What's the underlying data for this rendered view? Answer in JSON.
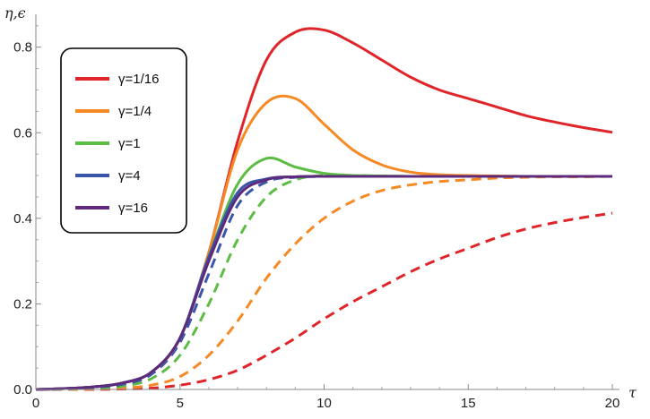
{
  "chart_data": {
    "type": "line",
    "ylabel": "η,ϵ",
    "xlabel": "τ",
    "xlim": [
      0,
      20
    ],
    "ylim": [
      0,
      0.86
    ],
    "x_ticks": [
      0,
      5,
      10,
      15,
      20
    ],
    "x_tick_labels": [
      "0",
      "5",
      "10",
      "15",
      "20"
    ],
    "y_ticks": [
      0.0,
      0.2,
      0.4,
      0.6,
      0.8
    ],
    "y_tick_labels": [
      "0.0",
      "0.2",
      "0.4",
      "0.6",
      "0.8"
    ],
    "legend_position": "top-left",
    "x": [
      0,
      1,
      2,
      3,
      4,
      5,
      6,
      7,
      8,
      9,
      10,
      11,
      12,
      13,
      14,
      15,
      16,
      17,
      18,
      19,
      20
    ],
    "series": [
      {
        "name": "γ=1/16",
        "label": "γ=1/16",
        "color": "#e0252a",
        "style": "solid",
        "values": [
          0.0,
          0.002,
          0.006,
          0.015,
          0.04,
          0.12,
          0.32,
          0.58,
          0.77,
          0.835,
          0.84,
          0.81,
          0.77,
          0.73,
          0.7,
          0.68,
          0.66,
          0.64,
          0.625,
          0.612,
          0.601
        ]
      },
      {
        "name": "γ=1/4",
        "label": "γ=1/4",
        "color": "#f58a25",
        "style": "solid",
        "values": [
          0.0,
          0.002,
          0.006,
          0.015,
          0.04,
          0.12,
          0.32,
          0.56,
          0.67,
          0.68,
          0.62,
          0.56,
          0.525,
          0.508,
          0.502,
          0.5,
          0.499,
          0.498,
          0.498,
          0.498,
          0.498
        ]
      },
      {
        "name": "γ=1",
        "label": "γ=1",
        "color": "#5cbc44",
        "style": "solid",
        "values": [
          0.0,
          0.002,
          0.006,
          0.015,
          0.04,
          0.12,
          0.31,
          0.48,
          0.54,
          0.52,
          0.505,
          0.5,
          0.499,
          0.498,
          0.498,
          0.498,
          0.498,
          0.498,
          0.498,
          0.498,
          0.498
        ]
      },
      {
        "name": "γ=4",
        "label": "γ=4",
        "color": "#3a56a8",
        "style": "solid",
        "values": [
          0.0,
          0.002,
          0.006,
          0.015,
          0.04,
          0.12,
          0.31,
          0.46,
          0.492,
          0.497,
          0.498,
          0.498,
          0.498,
          0.498,
          0.498,
          0.498,
          0.498,
          0.498,
          0.498,
          0.498,
          0.498
        ]
      },
      {
        "name": "γ=16",
        "label": "γ=16",
        "color": "#5e2a7e",
        "style": "solid",
        "values": [
          0.0,
          0.002,
          0.006,
          0.015,
          0.04,
          0.12,
          0.3,
          0.45,
          0.49,
          0.497,
          0.498,
          0.498,
          0.498,
          0.498,
          0.498,
          0.498,
          0.498,
          0.498,
          0.498,
          0.498,
          0.498
        ]
      },
      {
        "name": "γ=1/16 (dashed)",
        "color": "#e0252a",
        "style": "dashed",
        "values": [
          0.0,
          0.0,
          0.0,
          0.001,
          0.003,
          0.01,
          0.023,
          0.045,
          0.08,
          0.12,
          0.165,
          0.205,
          0.24,
          0.275,
          0.305,
          0.33,
          0.355,
          0.375,
          0.39,
          0.402,
          0.412
        ]
      },
      {
        "name": "γ=1/4 (dashed)",
        "color": "#f58a25",
        "style": "dashed",
        "values": [
          0.0,
          0.0,
          0.001,
          0.003,
          0.01,
          0.03,
          0.08,
          0.16,
          0.26,
          0.34,
          0.4,
          0.44,
          0.465,
          0.478,
          0.486,
          0.49,
          0.494,
          0.496,
          0.497,
          0.497,
          0.498
        ]
      },
      {
        "name": "γ=1 (dashed)",
        "color": "#5cbc44",
        "style": "dashed",
        "values": [
          0.0,
          0.001,
          0.003,
          0.008,
          0.025,
          0.08,
          0.2,
          0.35,
          0.45,
          0.49,
          0.5,
          0.5,
          0.499,
          0.498,
          0.498,
          0.498,
          0.498,
          0.498,
          0.498,
          0.498,
          0.498
        ]
      },
      {
        "name": "γ=4 (dashed)",
        "color": "#3a56a8",
        "style": "dashed",
        "values": [
          0.0,
          0.001,
          0.005,
          0.012,
          0.035,
          0.11,
          0.27,
          0.43,
          0.485,
          0.496,
          0.498,
          0.498,
          0.498,
          0.498,
          0.498,
          0.498,
          0.498,
          0.498,
          0.498,
          0.498,
          0.498
        ]
      }
    ]
  }
}
